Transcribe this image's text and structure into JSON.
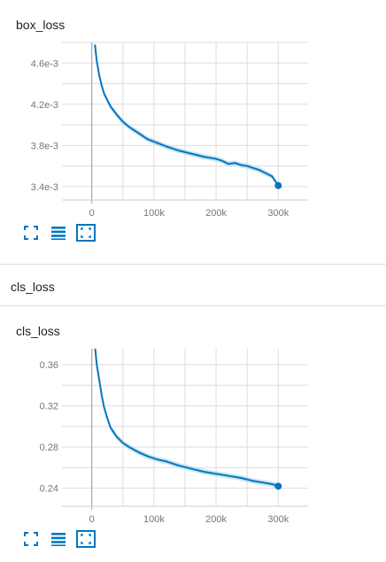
{
  "colors": {
    "line": "#0277bd",
    "band": "#bcdcf0",
    "grid": "#dddddd",
    "zero": "#9e9e9e",
    "divider": "#e0e0e0"
  },
  "toolbar_icons": [
    "fullscreen-icon",
    "data-table-icon",
    "fit-domain-icon"
  ],
  "section": {
    "title": "cls_loss"
  },
  "chart_data": [
    {
      "type": "line",
      "title": "box_loss",
      "x_ticks": [
        0,
        100000,
        200000,
        300000
      ],
      "x_tick_labels": [
        "0",
        "100k",
        "200k",
        "300k"
      ],
      "xlim": [
        -48000,
        348000
      ],
      "y_ticks": [
        0.0034,
        0.0038,
        0.0042,
        0.0046
      ],
      "y_tick_labels": [
        "3.4e-3",
        "3.8e-3",
        "4.2e-3",
        "4.6e-3"
      ],
      "ylim": [
        0.00327,
        0.0048
      ],
      "grid": true,
      "series": [
        {
          "x": [
            5000,
            8000,
            12000,
            16000,
            20000,
            25000,
            30000,
            40000,
            50000,
            60000,
            75000,
            90000,
            105000,
            120000,
            140000,
            160000,
            180000,
            200000,
            210000,
            220000,
            230000,
            240000,
            250000,
            260000,
            270000,
            280000,
            290000,
            300000
          ],
          "y": [
            0.00478,
            0.00462,
            0.00448,
            0.00438,
            0.0043,
            0.00424,
            0.00418,
            0.0041,
            0.00403,
            0.00398,
            0.00392,
            0.00386,
            0.003825,
            0.00379,
            0.00375,
            0.00372,
            0.00369,
            0.00367,
            0.00365,
            0.00362,
            0.00363,
            0.00361,
            0.0036,
            0.00358,
            0.00356,
            0.00353,
            0.0035,
            0.00341
          ]
        }
      ]
    },
    {
      "type": "line",
      "title": "cls_loss",
      "x_ticks": [
        0,
        100000,
        200000,
        300000
      ],
      "x_tick_labels": [
        "0",
        "100k",
        "200k",
        "300k"
      ],
      "xlim": [
        -48000,
        348000
      ],
      "y_ticks": [
        0.24,
        0.28,
        0.32,
        0.36
      ],
      "y_tick_labels": [
        "0.24",
        "0.28",
        "0.32",
        "0.36"
      ],
      "ylim": [
        0.2225,
        0.3755
      ],
      "grid": true,
      "series": [
        {
          "x": [
            5000,
            8000,
            12000,
            16000,
            20000,
            25000,
            30000,
            40000,
            50000,
            60000,
            75000,
            90000,
            105000,
            120000,
            140000,
            160000,
            180000,
            200000,
            220000,
            240000,
            260000,
            280000,
            290000,
            300000
          ],
          "y": [
            0.378,
            0.36,
            0.345,
            0.33,
            0.318,
            0.308,
            0.299,
            0.29,
            0.284,
            0.28,
            0.275,
            0.271,
            0.268,
            0.266,
            0.262,
            0.259,
            0.256,
            0.254,
            0.252,
            0.25,
            0.247,
            0.245,
            0.244,
            0.242
          ]
        }
      ]
    }
  ]
}
